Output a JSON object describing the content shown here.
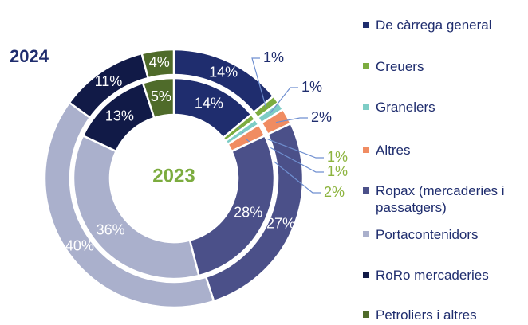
{
  "chart_data": {
    "type": "donut",
    "categories": [
      "De càrrega general",
      "Creuers",
      "Granelers",
      "Altres",
      "Ropax (mercaderies i passatgers)",
      "Portacontenidors",
      "RoRo mercaderies",
      "Petroliers i altres"
    ],
    "colors": [
      "#1f2d6e",
      "#7cac3f",
      "#7ecdc6",
      "#f08c62",
      "#4b5089",
      "#aab0cc",
      "#111a47",
      "#4f6b2a"
    ],
    "series": [
      {
        "name": "2024",
        "values": [
          14,
          1,
          1,
          2,
          27,
          40,
          11,
          4
        ],
        "value_labels": [
          "14%",
          "1%",
          "1%",
          "2%",
          "27%",
          "40%",
          "11%",
          "4%"
        ]
      },
      {
        "name": "2023",
        "values": [
          14,
          1,
          1,
          2,
          28,
          36,
          13,
          5
        ],
        "value_labels": [
          "14%",
          "1%",
          "1%",
          "2%",
          "28%",
          "36%",
          "13%",
          "5%"
        ]
      }
    ]
  }
}
